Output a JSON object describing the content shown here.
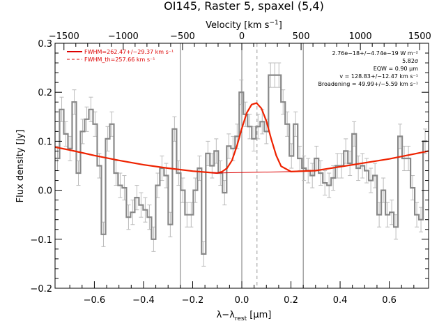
{
  "page": {
    "title": "OI145, Raster 5, spaxel (5,4)"
  },
  "chart_data": {
    "type": "line",
    "title": "OI145, Raster 5, spaxel (5,4)",
    "xlabel": "λ−λrest [μm]",
    "xlabel_parts": {
      "main": "λ−λ",
      "sub": "rest",
      "unit": " [μm]"
    },
    "ylabel": "Flux density [Jy]",
    "top_xlabel": "Velocity [km s⁻¹]",
    "top_xlabel_parts": {
      "main": "Velocity [km s",
      "sup": "−1",
      "end": "]"
    },
    "xlim": [
      -0.76,
      0.76
    ],
    "ylim": [
      -0.2,
      0.3
    ],
    "top_xlim": [
      -1575,
      1575
    ],
    "x_ticks": [
      -0.6,
      -0.4,
      -0.2,
      0.0,
      0.2,
      0.4,
      0.6
    ],
    "x_tick_labels": [
      "−0.6",
      "−0.4",
      "−0.2",
      "0.0",
      "0.2",
      "0.4",
      "0.6"
    ],
    "y_ticks": [
      -0.2,
      -0.1,
      0.0,
      0.1,
      0.2,
      0.3
    ],
    "y_tick_labels": [
      "−0.2",
      "−0.1",
      "0.0",
      "0.1",
      "0.2",
      "0.3"
    ],
    "top_ticks": [
      -1500,
      -1000,
      -500,
      0,
      500,
      1000,
      1500
    ],
    "top_tick_labels": [
      "−1500",
      "−1000",
      "−500",
      "0",
      "500",
      "1000",
      "1500"
    ],
    "vertical_lines": [
      -0.25,
      0.0,
      0.25
    ],
    "line_center": 0.0618,
    "legend": {
      "position": "top-left",
      "entries": [
        {
          "label": "FWHM=262.47+/−29.37 km s⁻¹",
          "style": "solid",
          "color": "#dd0000"
        },
        {
          "label": "FWHM_th=257.66 km s⁻¹",
          "style": "dashed",
          "color": "#dd0000"
        }
      ]
    },
    "annotations": [
      "2.76e−18+/−4.74e−19 W m⁻²",
      "5.82σ",
      "EQW = 0.90 μm",
      "v = 128.83+/−12.47 km s⁻¹",
      "Broadening = 49.99+/−5.59 km s⁻¹"
    ],
    "series": [
      {
        "name": "spectrum",
        "style": "step",
        "color": "#888888",
        "x": [
          -0.75,
          -0.733,
          -0.716,
          -0.699,
          -0.682,
          -0.665,
          -0.648,
          -0.631,
          -0.614,
          -0.597,
          -0.58,
          -0.563,
          -0.546,
          -0.529,
          -0.512,
          -0.495,
          -0.478,
          -0.461,
          -0.444,
          -0.427,
          -0.41,
          -0.393,
          -0.376,
          -0.359,
          -0.342,
          -0.325,
          -0.308,
          -0.291,
          -0.274,
          -0.257,
          -0.24,
          -0.223,
          -0.206,
          -0.189,
          -0.172,
          -0.155,
          -0.138,
          -0.121,
          -0.104,
          -0.087,
          -0.07,
          -0.053,
          -0.036,
          -0.019,
          -0.002,
          0.015,
          0.032,
          0.049,
          0.066,
          0.083,
          0.1,
          0.117,
          0.134,
          0.151,
          0.168,
          0.185,
          0.202,
          0.219,
          0.236,
          0.253,
          0.27,
          0.287,
          0.304,
          0.321,
          0.338,
          0.355,
          0.372,
          0.389,
          0.406,
          0.423,
          0.44,
          0.457,
          0.474,
          0.491,
          0.508,
          0.525,
          0.542,
          0.559,
          0.576,
          0.593,
          0.61,
          0.627,
          0.644,
          0.661,
          0.678,
          0.695,
          0.712,
          0.729,
          0.746
        ],
        "y": [
          0.065,
          0.165,
          0.115,
          0.085,
          0.18,
          0.035,
          0.12,
          0.145,
          0.165,
          0.135,
          0.05,
          -0.09,
          0.105,
          0.135,
          0.035,
          0.01,
          0.005,
          -0.055,
          -0.045,
          -0.015,
          -0.03,
          -0.04,
          -0.055,
          -0.1,
          0.01,
          0.045,
          0.03,
          -0.07,
          0.125,
          0.035,
          0.0,
          -0.05,
          -0.05,
          0.0,
          0.045,
          -0.13,
          0.075,
          0.05,
          0.08,
          0.035,
          -0.005,
          0.09,
          0.085,
          0.11,
          0.2,
          0.155,
          0.13,
          0.105,
          0.13,
          0.14,
          0.12,
          0.235,
          0.235,
          0.235,
          0.18,
          0.135,
          0.07,
          0.135,
          0.065,
          0.045,
          0.04,
          0.03,
          0.065,
          0.035,
          0.015,
          0.01,
          0.025,
          0.05,
          0.05,
          0.08,
          0.055,
          0.115,
          0.045,
          0.05,
          0.04,
          0.02,
          0.03,
          -0.05,
          0.0,
          -0.05,
          -0.045,
          -0.075,
          0.11,
          0.065,
          0.065,
          0.005,
          -0.05,
          -0.06,
          0.1
        ],
        "yerr": [
          0.025,
          0.025,
          0.025,
          0.025,
          0.025,
          0.025,
          0.025,
          0.025,
          0.025,
          0.025,
          0.025,
          0.025,
          0.025,
          0.025,
          0.025,
          0.025,
          0.025,
          0.025,
          0.025,
          0.025,
          0.025,
          0.025,
          0.025,
          0.025,
          0.025,
          0.025,
          0.025,
          0.025,
          0.025,
          0.025,
          0.025,
          0.025,
          0.025,
          0.025,
          0.025,
          0.025,
          0.025,
          0.025,
          0.025,
          0.025,
          0.025,
          0.025,
          0.025,
          0.025,
          0.025,
          0.025,
          0.025,
          0.025,
          0.025,
          0.025,
          0.025,
          0.025,
          0.025,
          0.025,
          0.025,
          0.025,
          0.025,
          0.025,
          0.025,
          0.025,
          0.025,
          0.025,
          0.025,
          0.025,
          0.025,
          0.025,
          0.025,
          0.025,
          0.025,
          0.025,
          0.025,
          0.025,
          0.025,
          0.025,
          0.025,
          0.025,
          0.025,
          0.025,
          0.025,
          0.025,
          0.025,
          0.025,
          0.025,
          0.025,
          0.025,
          0.025,
          0.025,
          0.025,
          0.025
        ]
      },
      {
        "name": "model fit",
        "style": "line",
        "color": "#ee2200",
        "x": [
          -0.76,
          -0.7,
          -0.6,
          -0.5,
          -0.4,
          -0.3,
          -0.2,
          -0.15,
          -0.1,
          -0.08,
          -0.06,
          -0.04,
          -0.02,
          0.0,
          0.02,
          0.04,
          0.06,
          0.08,
          0.1,
          0.12,
          0.14,
          0.16,
          0.2,
          0.3,
          0.4,
          0.5,
          0.6,
          0.7,
          0.76
        ],
        "y": [
          0.088,
          0.082,
          0.071,
          0.061,
          0.052,
          0.045,
          0.039,
          0.037,
          0.035,
          0.038,
          0.045,
          0.061,
          0.09,
          0.126,
          0.158,
          0.175,
          0.178,
          0.167,
          0.141,
          0.104,
          0.071,
          0.049,
          0.038,
          0.04,
          0.048,
          0.056,
          0.064,
          0.074,
          0.08
        ]
      },
      {
        "name": "continuum",
        "style": "line",
        "color": "#dd0000",
        "x": [
          -0.12,
          0.2
        ],
        "y": [
          0.035,
          0.038
        ]
      }
    ]
  }
}
